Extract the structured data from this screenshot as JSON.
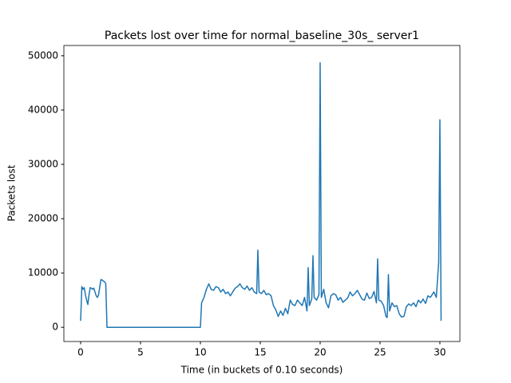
{
  "chart_data": {
    "type": "line",
    "title": "Packets lost over time for normal_baseline_30s_ server1",
    "x_label": "Time (in buckets of 0.10 seconds)",
    "y_label": "Packets lost",
    "x": [
      0.0,
      0.1,
      0.2,
      0.3,
      0.4,
      0.5,
      0.6,
      0.7,
      0.8,
      0.9,
      1.0,
      1.1,
      1.2,
      1.3,
      1.4,
      1.5,
      1.6,
      1.7,
      1.8,
      1.9,
      2.0,
      2.1,
      2.2,
      10.0,
      10.1,
      10.3,
      10.5,
      10.7,
      10.9,
      11.1,
      11.3,
      11.5,
      11.7,
      11.9,
      12.1,
      12.3,
      12.5,
      12.7,
      12.9,
      13.1,
      13.3,
      13.5,
      13.7,
      13.9,
      14.1,
      14.3,
      14.5,
      14.7,
      14.8,
      14.9,
      15.1,
      15.3,
      15.5,
      15.7,
      15.9,
      16.1,
      16.3,
      16.5,
      16.7,
      16.9,
      17.1,
      17.3,
      17.5,
      17.7,
      17.9,
      18.1,
      18.3,
      18.5,
      18.7,
      18.9,
      19.0,
      19.1,
      19.3,
      19.4,
      19.5,
      19.7,
      19.9,
      20.0,
      20.1,
      20.3,
      20.5,
      20.7,
      20.9,
      21.1,
      21.3,
      21.5,
      21.7,
      21.9,
      22.1,
      22.3,
      22.5,
      22.7,
      22.9,
      23.1,
      23.3,
      23.5,
      23.7,
      23.9,
      24.1,
      24.3,
      24.5,
      24.7,
      24.8,
      24.9,
      25.1,
      25.3,
      25.5,
      25.6,
      25.7,
      25.8,
      26.0,
      26.2,
      26.4,
      26.6,
      26.8,
      27.0,
      27.2,
      27.4,
      27.6,
      27.8,
      28.0,
      28.2,
      28.4,
      28.6,
      28.8,
      29.0,
      29.2,
      29.5,
      29.7,
      29.9,
      30.0,
      30.1
    ],
    "series": [
      {
        "color": "#1f77b4",
        "values": [
          1200,
          7500,
          7000,
          7300,
          6000,
          5000,
          4200,
          6000,
          7300,
          7200,
          7000,
          7200,
          6500,
          5800,
          5500,
          6000,
          7500,
          8800,
          8700,
          8500,
          8400,
          8000,
          0,
          0,
          4500,
          5500,
          7000,
          8000,
          7000,
          6800,
          7500,
          7300,
          6500,
          7000,
          6200,
          6500,
          5800,
          6500,
          7200,
          7500,
          8000,
          7300,
          7000,
          7600,
          6800,
          7300,
          6500,
          6200,
          14200,
          6500,
          6200,
          6800,
          6000,
          6200,
          5800,
          4000,
          3200,
          2000,
          3000,
          2200,
          3500,
          2500,
          5000,
          4200,
          4000,
          5000,
          4500,
          4000,
          5500,
          3000,
          11000,
          4000,
          5200,
          13200,
          5500,
          5000,
          6000,
          48700,
          5500,
          7000,
          4500,
          3600,
          5800,
          6200,
          6000,
          5000,
          5500,
          4600,
          5000,
          5400,
          6500,
          5800,
          6200,
          6800,
          6000,
          5200,
          5000,
          6300,
          5300,
          5500,
          6600,
          4500,
          12600,
          5000,
          4800,
          4000,
          2000,
          1800,
          9700,
          3000,
          4500,
          3800,
          4000,
          2500,
          1900,
          2000,
          3800,
          4300,
          4000,
          4500,
          3800,
          5000,
          4500,
          5200,
          4400,
          5800,
          5500,
          6500,
          5500,
          12000,
          38200,
          1200
        ]
      }
    ],
    "xlim": [
      -1.4,
      31.67
    ],
    "ylim": [
      -2616,
      51890
    ],
    "xticks": [
      0,
      5,
      10,
      15,
      20,
      25,
      30
    ],
    "yticks": [
      0,
      10000,
      20000,
      30000,
      40000,
      50000
    ]
  }
}
